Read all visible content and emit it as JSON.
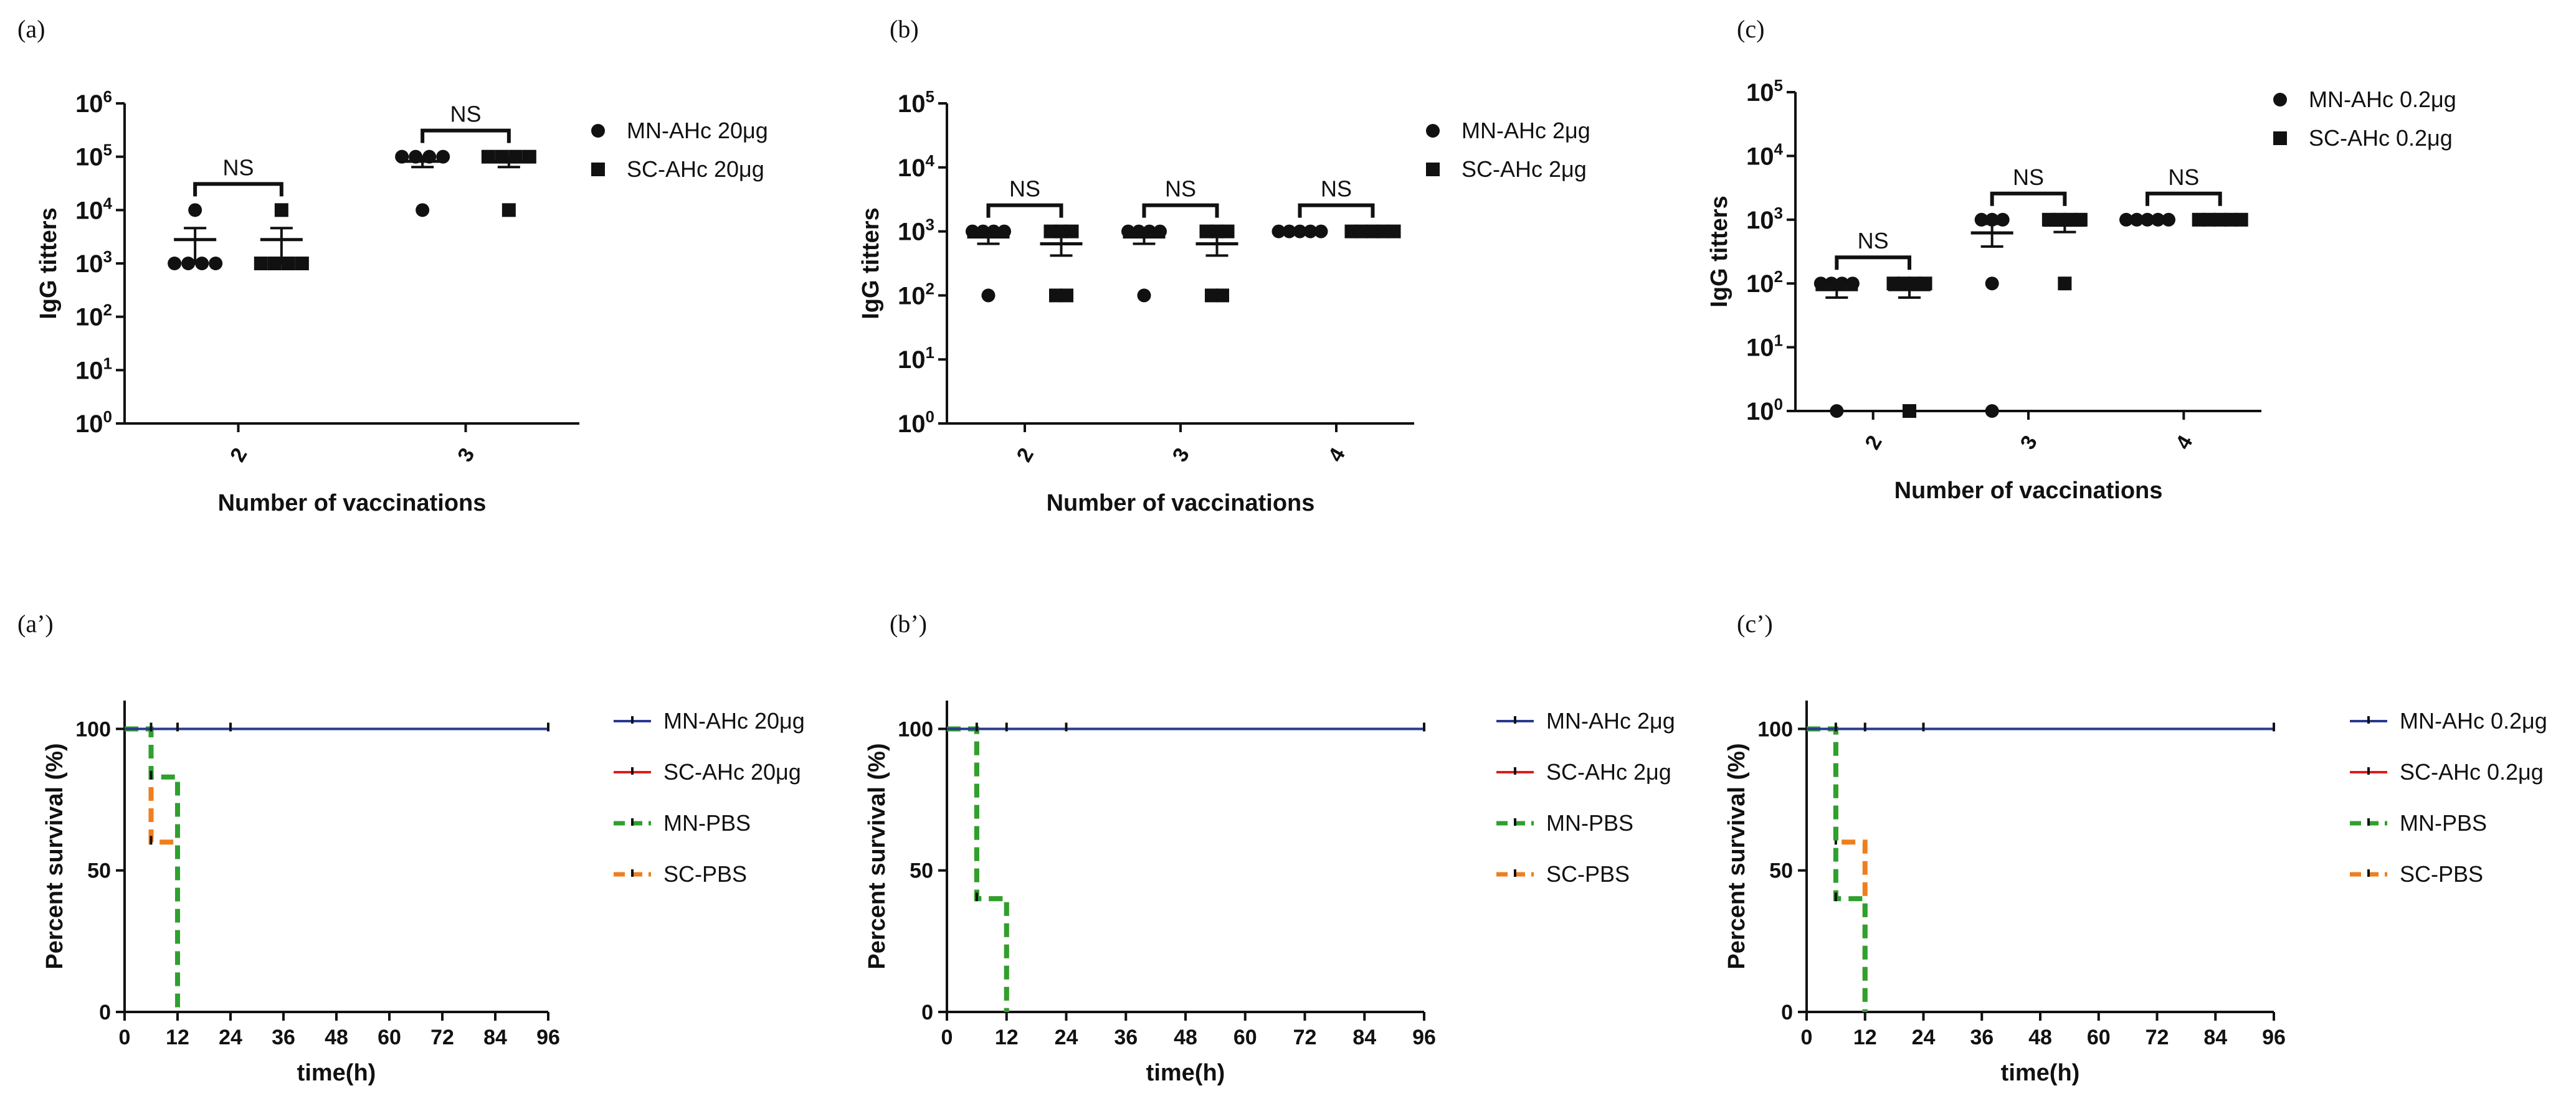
{
  "chart_data": [
    {
      "id": "a",
      "type": "scatter",
      "panel_label": "(a)",
      "xlabel": "Number of vaccinations",
      "ylabel": "IgG titters",
      "yscale": "log10",
      "ylim_exp": [
        0,
        6
      ],
      "categories": [
        "2",
        "3"
      ],
      "series": [
        {
          "name": "MN-AHc 20μg",
          "marker": "circle",
          "values": [
            [
              1000,
              1000,
              1000,
              1000,
              10000
            ],
            [
              10000,
              100000,
              100000,
              100000,
              100000
            ]
          ],
          "mean": [
            2800,
            82000
          ],
          "sem": [
            1800,
            18000
          ]
        },
        {
          "name": "SC-AHc 20μg",
          "marker": "square",
          "values": [
            [
              1000,
              1000,
              1000,
              1000,
              10000
            ],
            [
              10000,
              100000,
              100000,
              100000,
              100000
            ]
          ],
          "mean": [
            2800,
            82000
          ],
          "sem": [
            1800,
            18000
          ]
        }
      ],
      "annotations": [
        {
          "text": "NS",
          "category": "2"
        },
        {
          "text": "NS",
          "category": "3"
        }
      ],
      "legend_position": "right"
    },
    {
      "id": "b",
      "type": "scatter",
      "panel_label": "(b)",
      "xlabel": "Number of vaccinations",
      "ylabel": "IgG titters",
      "yscale": "log10",
      "ylim_exp": [
        0,
        5
      ],
      "categories": [
        "2",
        "3",
        "4"
      ],
      "series": [
        {
          "name": "MN-AHc 2μg",
          "marker": "circle",
          "values": [
            [
              100,
              1000,
              1000,
              1000,
              1000
            ],
            [
              100,
              1000,
              1000,
              1000,
              1000
            ],
            [
              1000,
              1000,
              1000,
              1000,
              1000
            ]
          ],
          "mean": [
            820,
            820,
            1000
          ],
          "sem": [
            180,
            180,
            0
          ]
        },
        {
          "name": "SC-AHc 2μg",
          "marker": "square",
          "values": [
            [
              100,
              100,
              1000,
              1000,
              1000
            ],
            [
              100,
              100,
              1000,
              1000,
              1000
            ],
            [
              1000,
              1000,
              1000,
              1000,
              1000
            ]
          ],
          "mean": [
            640,
            640,
            1000
          ],
          "sem": [
            220,
            220,
            0
          ]
        }
      ],
      "annotations": [
        {
          "text": "NS",
          "category": "2"
        },
        {
          "text": "NS",
          "category": "3"
        },
        {
          "text": "NS",
          "category": "4"
        }
      ],
      "legend_position": "right"
    },
    {
      "id": "c",
      "type": "scatter",
      "panel_label": "(c)",
      "xlabel": "Number of vaccinations",
      "ylabel": "IgG titters",
      "yscale": "log10",
      "ylim_exp": [
        0,
        5
      ],
      "categories": [
        "2",
        "3",
        "4"
      ],
      "series": [
        {
          "name": "MN-AHc 0.2μg",
          "marker": "circle",
          "values": [
            [
              1,
              100,
              100,
              100,
              100
            ],
            [
              1,
              100,
              1000,
              1000,
              1000
            ],
            [
              1000,
              1000,
              1000,
              1000,
              1000
            ]
          ],
          "mean": [
            80,
            620,
            1000
          ],
          "sem": [
            20,
            240,
            0
          ]
        },
        {
          "name": "SC-AHc 0.2μg",
          "marker": "square",
          "values": [
            [
              1,
              100,
              100,
              100,
              100
            ],
            [
              100,
              1000,
              1000,
              1000,
              1000
            ],
            [
              1000,
              1000,
              1000,
              1000,
              1000
            ]
          ],
          "mean": [
            80,
            820,
            1000
          ],
          "sem": [
            20,
            180,
            0
          ]
        }
      ],
      "annotations": [
        {
          "text": "NS",
          "category": "2"
        },
        {
          "text": "NS",
          "category": "3"
        },
        {
          "text": "NS",
          "category": "4"
        }
      ],
      "legend_position": "right"
    },
    {
      "id": "a2",
      "type": "line",
      "step": true,
      "panel_label": "(a’)",
      "xlabel": "time(h)",
      "ylabel": "Percent survival (%)",
      "xlim": [
        0,
        96
      ],
      "ylim": [
        0,
        110
      ],
      "xticks": [
        0,
        12,
        24,
        36,
        48,
        60,
        72,
        84,
        96
      ],
      "yticks": [
        0,
        50,
        100
      ],
      "series": [
        {
          "name": "MN-AHc 20μg",
          "color": "#2b3a8f",
          "dash": false,
          "points": [
            [
              0,
              100
            ],
            [
              96,
              100
            ]
          ],
          "censor": [
            6,
            12,
            24,
            96
          ]
        },
        {
          "name": "SC-AHc 20μg",
          "color": "#e01b1b",
          "dash": false,
          "points": [
            [
              0,
              100
            ],
            [
              96,
              100
            ]
          ],
          "censor": []
        },
        {
          "name": "MN-PBS",
          "color": "#2ea02e",
          "dash": true,
          "points": [
            [
              0,
              100
            ],
            [
              6,
              100
            ],
            [
              6,
              83
            ],
            [
              12,
              83
            ],
            [
              12,
              0
            ]
          ],
          "censor": [
            6
          ]
        },
        {
          "name": "SC-PBS",
          "color": "#f07e1c",
          "dash": true,
          "points": [
            [
              0,
              100
            ],
            [
              6,
              100
            ],
            [
              6,
              60
            ],
            [
              12,
              60
            ],
            [
              12,
              0
            ]
          ],
          "censor": [
            6
          ]
        }
      ],
      "legend_position": "right"
    },
    {
      "id": "b2",
      "type": "line",
      "step": true,
      "panel_label": "(b’)",
      "xlabel": "time(h)",
      "ylabel": "Percent survival (%)",
      "xlim": [
        0,
        96
      ],
      "ylim": [
        0,
        110
      ],
      "xticks": [
        0,
        12,
        24,
        36,
        48,
        60,
        72,
        84,
        96
      ],
      "yticks": [
        0,
        50,
        100
      ],
      "series": [
        {
          "name": "MN-AHc 2μg",
          "color": "#2b3a8f",
          "dash": false,
          "points": [
            [
              0,
              100
            ],
            [
              96,
              100
            ]
          ],
          "censor": [
            6,
            12,
            24,
            96
          ]
        },
        {
          "name": "SC-AHc 2μg",
          "color": "#e01b1b",
          "dash": false,
          "points": [
            [
              0,
              100
            ],
            [
              96,
              100
            ]
          ],
          "censor": []
        },
        {
          "name": "MN-PBS",
          "color": "#2ea02e",
          "dash": true,
          "points": [
            [
              0,
              100
            ],
            [
              6,
              100
            ],
            [
              6,
              40
            ],
            [
              12,
              40
            ],
            [
              12,
              0
            ]
          ],
          "censor": [
            6
          ]
        },
        {
          "name": "SC-PBS",
          "color": "#f07e1c",
          "dash": true,
          "points": [
            [
              0,
              100
            ],
            [
              6,
              100
            ],
            [
              6,
              40
            ],
            [
              12,
              40
            ],
            [
              12,
              0
            ]
          ],
          "censor": []
        }
      ],
      "legend_position": "right"
    },
    {
      "id": "c2",
      "type": "line",
      "step": true,
      "panel_label": "(c’)",
      "xlabel": "time(h)",
      "ylabel": "Percent survival (%)",
      "xlim": [
        0,
        96
      ],
      "ylim": [
        0,
        110
      ],
      "xticks": [
        0,
        12,
        24,
        36,
        48,
        60,
        72,
        84,
        96
      ],
      "yticks": [
        0,
        50,
        100
      ],
      "series": [
        {
          "name": "MN-AHc 0.2μg",
          "color": "#2b3a8f",
          "dash": false,
          "points": [
            [
              0,
              100
            ],
            [
              96,
              100
            ]
          ],
          "censor": [
            6,
            12,
            24,
            96
          ]
        },
        {
          "name": "SC-AHc 0.2μg",
          "color": "#e01b1b",
          "dash": false,
          "points": [
            [
              0,
              100
            ],
            [
              96,
              100
            ]
          ],
          "censor": []
        },
        {
          "name": "MN-PBS",
          "color": "#2ea02e",
          "dash": true,
          "points": [
            [
              0,
              100
            ],
            [
              6,
              100
            ],
            [
              6,
              40
            ],
            [
              12,
              40
            ],
            [
              12,
              0
            ]
          ],
          "censor": [
            6
          ]
        },
        {
          "name": "SC-PBS",
          "color": "#f07e1c",
          "dash": true,
          "points": [
            [
              0,
              100
            ],
            [
              6,
              100
            ],
            [
              6,
              60
            ],
            [
              12,
              60
            ],
            [
              12,
              0
            ]
          ],
          "censor": [
            6
          ]
        }
      ],
      "legend_position": "right"
    }
  ]
}
